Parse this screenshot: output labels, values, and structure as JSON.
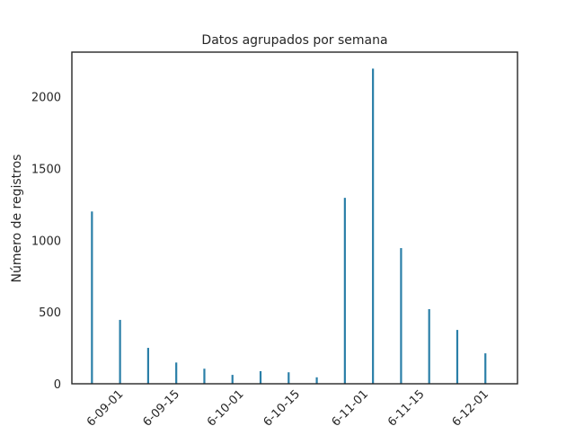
{
  "chart_data": {
    "type": "bar",
    "title": "Datos agrupados por semana",
    "xlabel": "",
    "ylabel": "Número de registros",
    "x": [
      "2016-08-25",
      "2016-09-01",
      "2016-09-08",
      "2016-09-15",
      "2016-09-22",
      "2016-09-29",
      "2016-10-06",
      "2016-10-13",
      "2016-10-20",
      "2016-10-27",
      "2016-11-03",
      "2016-11-10",
      "2016-11-17",
      "2016-11-24",
      "2016-12-01"
    ],
    "values": [
      1200,
      445,
      250,
      148,
      105,
      62,
      88,
      80,
      45,
      1295,
      2195,
      945,
      520,
      375,
      212
    ],
    "x_tick_labels": [
      "6-09-01",
      "6-09-15",
      "6-10-01",
      "6-10-15",
      "6-11-01",
      "6-11-15",
      "6-12-01"
    ],
    "x_tick_dates": [
      "2016-09-01",
      "2016-09-15",
      "2016-10-01",
      "2016-10-15",
      "2016-11-01",
      "2016-11-15",
      "2016-12-01"
    ],
    "y_ticks": [
      0,
      500,
      1000,
      1500,
      2000
    ],
    "ylim": [
      0,
      2310
    ],
    "xlim": [
      "2016-08-20",
      "2016-12-09"
    ],
    "grid": false,
    "bar_color": "#2a7fa8"
  }
}
